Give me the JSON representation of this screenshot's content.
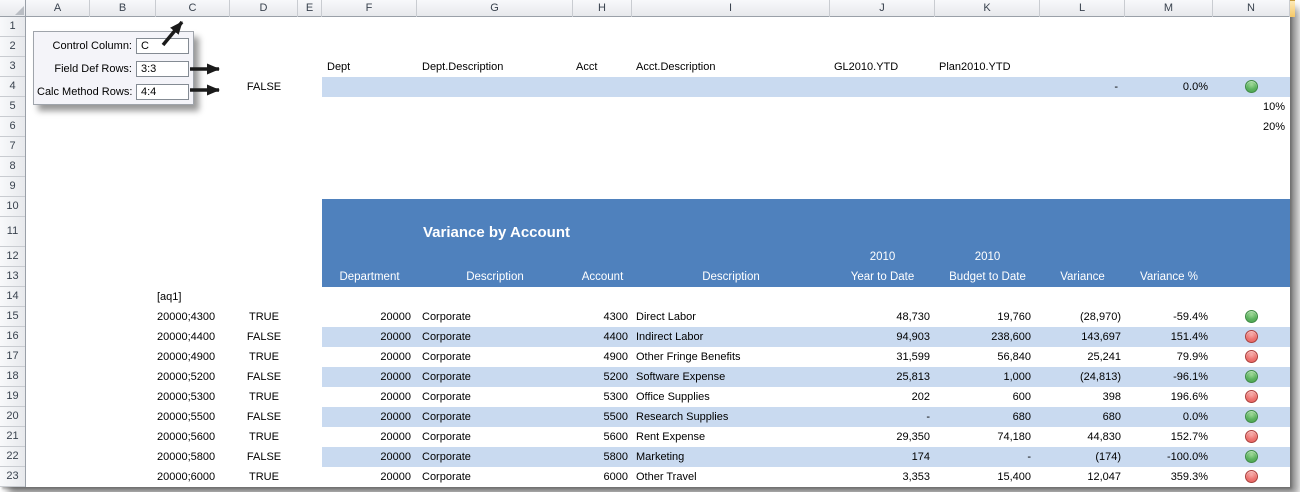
{
  "grid": {
    "column_letters": [
      "A",
      "B",
      "C",
      "D",
      "E",
      "F",
      "G",
      "H",
      "I",
      "J",
      "K",
      "L",
      "M",
      "N"
    ],
    "row_numbers": [
      "1",
      "2",
      "3",
      "4",
      "5",
      "6",
      "7",
      "8",
      "9",
      "10",
      "11",
      "12",
      "13",
      "14",
      "15",
      "16",
      "17",
      "18",
      "19",
      "20",
      "21",
      "22",
      "23"
    ]
  },
  "callout": {
    "fields": [
      {
        "label": "Control Column:",
        "value": "C"
      },
      {
        "label": "Field Def Rows:",
        "value": "3:3"
      },
      {
        "label": "Calc Method Rows:",
        "value": "4:4"
      }
    ]
  },
  "field_def_row": {
    "cells": [
      {
        "col": "F",
        "text": "Dept"
      },
      {
        "col": "G",
        "text": "Dept.Description"
      },
      {
        "col": "H",
        "text": "Acct"
      },
      {
        "col": "I",
        "text": "Acct.Description"
      },
      {
        "col": "J",
        "text": "GL2010.YTD"
      },
      {
        "col": "K",
        "text": "Plan2010.YTD"
      }
    ]
  },
  "calc_method_row": {
    "flag": "FALSE",
    "variance": "-",
    "variance_pct": "0.0%",
    "indicator": "green"
  },
  "threshold_rows": [
    {
      "row": 5,
      "text": "10%"
    },
    {
      "row": 6,
      "text": "20%"
    }
  ],
  "range_marker": "[aq1]",
  "report": {
    "title": "Variance by Account",
    "column_headers": {
      "department": "Department",
      "dept_description": "Description",
      "account": "Account",
      "acct_description": "Description",
      "ytd_year": "2010",
      "ytd_label": "Year to Date",
      "budget_year": "2010",
      "budget_label": "Budget to Date",
      "variance": "Variance",
      "variance_pct": "Variance %"
    },
    "rows": [
      {
        "row": 15,
        "key": "20000;4300",
        "flag": "TRUE",
        "dept": "20000",
        "dept_desc": "Corporate",
        "acct": "4300",
        "acct_desc": "Direct Labor",
        "ytd": "48,730",
        "budget": "19,760",
        "variance": "(28,970)",
        "variance_pct": "-59.4%",
        "indicator": "green",
        "banded": false
      },
      {
        "row": 16,
        "key": "20000;4400",
        "flag": "FALSE",
        "dept": "20000",
        "dept_desc": "Corporate",
        "acct": "4400",
        "acct_desc": "Indirect Labor",
        "ytd": "94,903",
        "budget": "238,600",
        "variance": "143,697",
        "variance_pct": "151.4%",
        "indicator": "red",
        "banded": true
      },
      {
        "row": 17,
        "key": "20000;4900",
        "flag": "TRUE",
        "dept": "20000",
        "dept_desc": "Corporate",
        "acct": "4900",
        "acct_desc": "Other Fringe Benefits",
        "ytd": "31,599",
        "budget": "56,840",
        "variance": "25,241",
        "variance_pct": "79.9%",
        "indicator": "red",
        "banded": false
      },
      {
        "row": 18,
        "key": "20000;5200",
        "flag": "FALSE",
        "dept": "20000",
        "dept_desc": "Corporate",
        "acct": "5200",
        "acct_desc": "Software Expense",
        "ytd": "25,813",
        "budget": "1,000",
        "variance": "(24,813)",
        "variance_pct": "-96.1%",
        "indicator": "green",
        "banded": true
      },
      {
        "row": 19,
        "key": "20000;5300",
        "flag": "TRUE",
        "dept": "20000",
        "dept_desc": "Corporate",
        "acct": "5300",
        "acct_desc": "Office Supplies",
        "ytd": "202",
        "budget": "600",
        "variance": "398",
        "variance_pct": "196.6%",
        "indicator": "red",
        "banded": false
      },
      {
        "row": 20,
        "key": "20000;5500",
        "flag": "FALSE",
        "dept": "20000",
        "dept_desc": "Corporate",
        "acct": "5500",
        "acct_desc": "Research Supplies",
        "ytd": "-",
        "budget": "680",
        "variance": "680",
        "variance_pct": "0.0%",
        "indicator": "green",
        "banded": true
      },
      {
        "row": 21,
        "key": "20000;5600",
        "flag": "TRUE",
        "dept": "20000",
        "dept_desc": "Corporate",
        "acct": "5600",
        "acct_desc": "Rent Expense",
        "ytd": "29,350",
        "budget": "74,180",
        "variance": "44,830",
        "variance_pct": "152.7%",
        "indicator": "red",
        "banded": false
      },
      {
        "row": 22,
        "key": "20000;5800",
        "flag": "FALSE",
        "dept": "20000",
        "dept_desc": "Corporate",
        "acct": "5800",
        "acct_desc": "Marketing",
        "ytd": "174",
        "budget": "-",
        "variance": "(174)",
        "variance_pct": "-100.0%",
        "indicator": "green",
        "banded": true
      },
      {
        "row": 23,
        "key": "20000;6000",
        "flag": "TRUE",
        "dept": "20000",
        "dept_desc": "Corporate",
        "acct": "6000",
        "acct_desc": "Other Travel",
        "ytd": "3,353",
        "budget": "15,400",
        "variance": "12,047",
        "variance_pct": "359.3%",
        "indicator": "red",
        "banded": false
      }
    ]
  },
  "colors": {
    "report_header_blue": "#4f81bd",
    "band_blue": "#c9daf0",
    "indicator_green": "#48a14e",
    "indicator_red": "#e4615e"
  }
}
